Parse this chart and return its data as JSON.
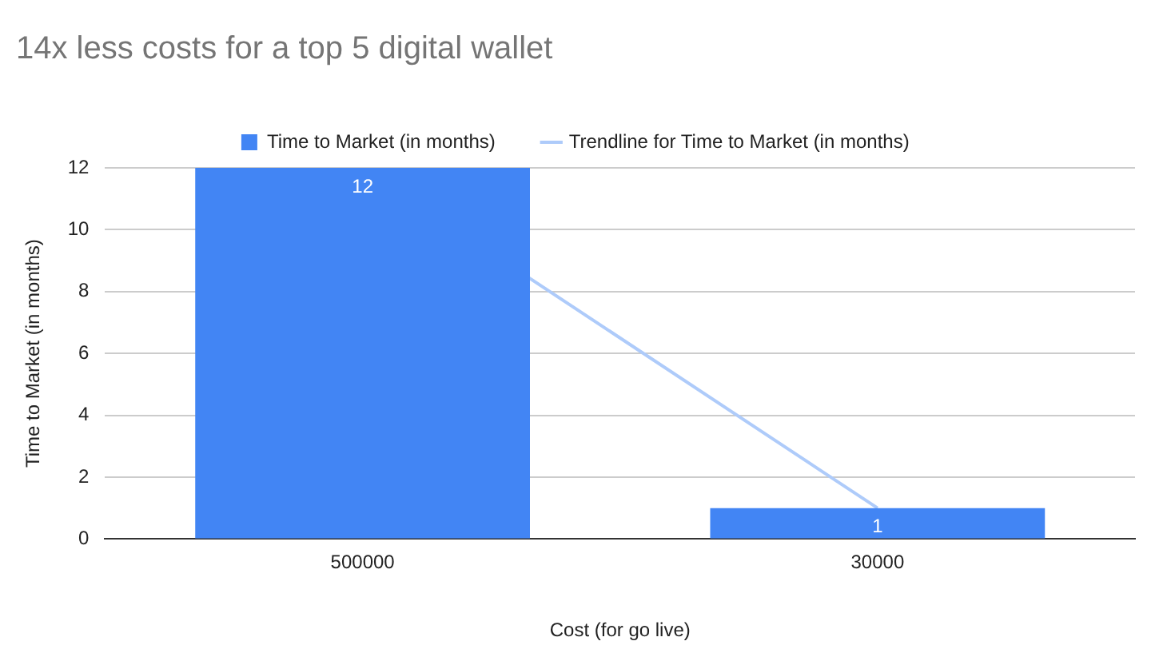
{
  "chart_data": {
    "type": "bar",
    "title": "14x less costs for a top 5 digital wallet",
    "xlabel": "Cost (for go live)",
    "ylabel": "Time to Market (in months)",
    "categories": [
      "500000",
      "30000"
    ],
    "series": [
      {
        "name": "Time to Market (in months)",
        "color": "#4285f4",
        "values": [
          12,
          1
        ],
        "value_labels": [
          "12",
          "1"
        ]
      },
      {
        "name": "Trendline for Time to Market (in months)",
        "type": "line",
        "color": "#aecbfa",
        "values": [
          12,
          1
        ]
      }
    ],
    "ylim": [
      0,
      12
    ],
    "yticks": [
      0,
      2,
      4,
      6,
      8,
      10,
      12
    ],
    "grid": "y",
    "legend": "top"
  }
}
